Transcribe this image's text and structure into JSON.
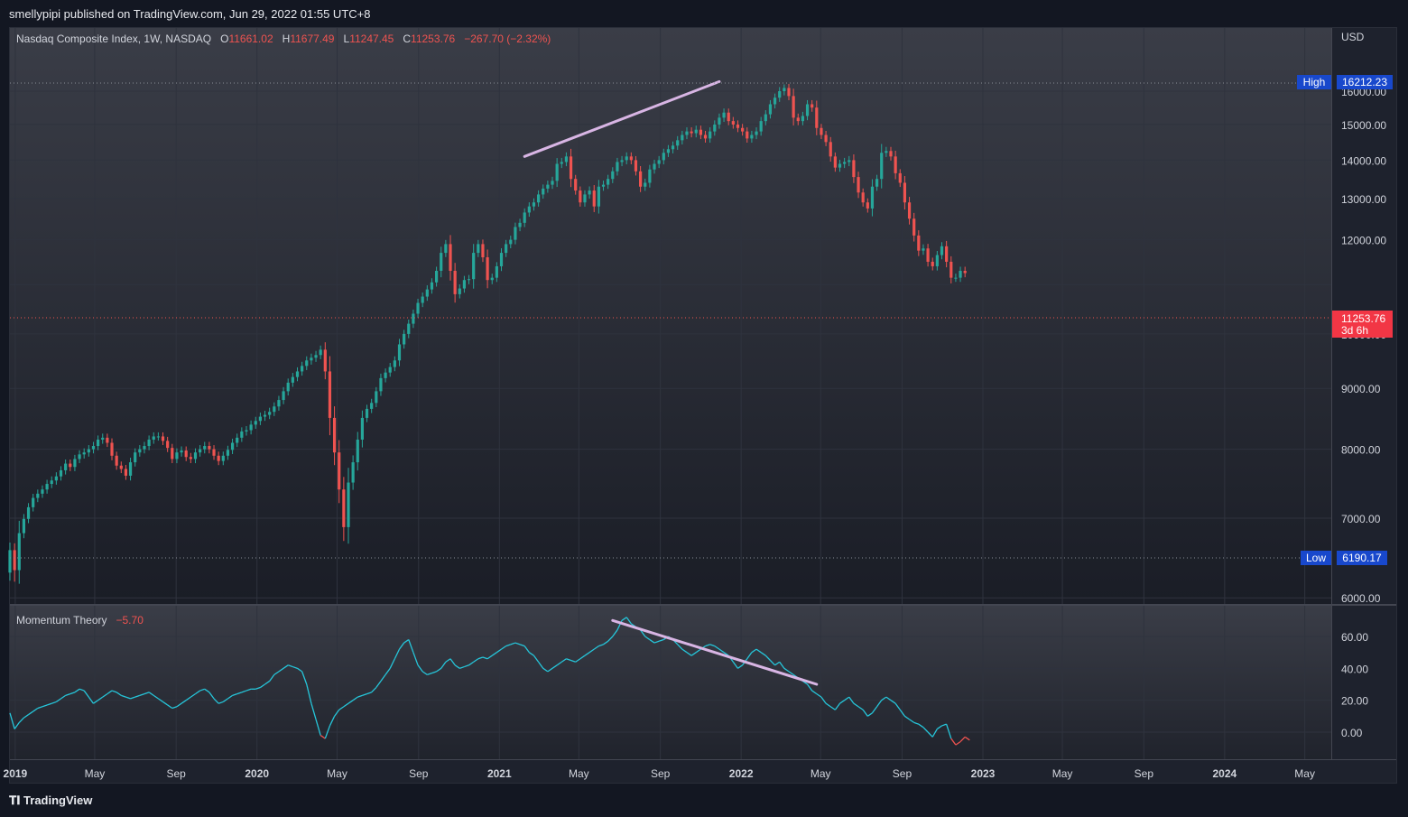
{
  "header": {
    "published": "smellypipi published on TradingView.com, Jun 29, 2022 01:55 UTC+8"
  },
  "footer": {
    "brand": "TradingView"
  },
  "colors": {
    "background": "#131722",
    "pane": "#1e222d",
    "up": "#26a69a",
    "down": "#ef5350",
    "trendline": "#d8b5e4",
    "oscillator": "#26c6da",
    "high_badge": "#1848cc",
    "price_badge": "#f23645"
  },
  "legend": {
    "symbol": "Nasdaq Composite Index, 1W, NASDAQ",
    "open_label": "O",
    "open": "11661.02",
    "high_label": "H",
    "high": "11677.49",
    "low_label": "L",
    "low": "11247.45",
    "close_label": "C",
    "close": "11253.76",
    "change": "−267.70 (−2.32%)"
  },
  "price_axis": {
    "currency": "USD",
    "high_label": "High",
    "high_value": "16212.23",
    "low_label": "Low",
    "low_value": "6190.17",
    "last_value": "11253.76",
    "countdown": "3d 6h"
  },
  "indicator": {
    "name": "Momentum Theory",
    "value": "−5.70"
  },
  "x_axis_labels": [
    "2019",
    "May",
    "Sep",
    "2020",
    "May",
    "Sep",
    "2021",
    "May",
    "Sep",
    "2022",
    "May",
    "Sep",
    "2023",
    "May",
    "Sep",
    "2024",
    "May"
  ],
  "chart_data": [
    {
      "type": "candlestick",
      "title": "Nasdaq Composite Index, 1W, NASDAQ",
      "ylabel": "USD",
      "ylim": [
        6000,
        17000
      ],
      "yticks": [
        6000,
        7000,
        8000,
        9000,
        10000,
        11000,
        12000,
        13000,
        14000,
        15000,
        16000
      ],
      "ytick_labels": [
        "6000.00",
        "7000.00",
        "8000.00",
        "9000.00",
        "10000.00",
        "",
        "12000.00",
        "13000.00",
        "14000.00",
        "15000.00",
        "16000.00"
      ],
      "x_start": "2018-12-24",
      "x_end": "2024-06-10",
      "weekly_closes": [
        6580,
        6330,
        6800,
        6990,
        7150,
        7280,
        7340,
        7400,
        7480,
        7530,
        7590,
        7680,
        7780,
        7730,
        7850,
        7920,
        7950,
        8000,
        8050,
        8150,
        8180,
        8100,
        7900,
        7750,
        7700,
        7600,
        7800,
        7950,
        8000,
        8050,
        8150,
        8200,
        8200,
        8130,
        8020,
        7850,
        7950,
        7980,
        7880,
        7850,
        7950,
        8000,
        8050,
        8000,
        7900,
        7820,
        7900,
        7990,
        8100,
        8180,
        8280,
        8300,
        8390,
        8450,
        8520,
        8550,
        8600,
        8690,
        8800,
        8950,
        9100,
        9200,
        9300,
        9400,
        9500,
        9550,
        9600,
        9700,
        9300,
        8500,
        7950,
        7400,
        6880,
        7500,
        7800,
        8150,
        8500,
        8650,
        8750,
        8950,
        9180,
        9280,
        9380,
        9500,
        9800,
        10000,
        10200,
        10400,
        10620,
        10750,
        10900,
        11050,
        11300,
        11700,
        11900,
        11300,
        10800,
        10920,
        11100,
        11120,
        11700,
        11900,
        11600,
        11100,
        11150,
        11400,
        11700,
        11900,
        12000,
        12300,
        12400,
        12650,
        12800,
        12900,
        13100,
        13250,
        13350,
        13450,
        13900,
        13950,
        14100,
        13500,
        13200,
        12900,
        13100,
        13200,
        12800,
        13300,
        13350,
        13500,
        13700,
        13950,
        14000,
        14100,
        14000,
        13700,
        13300,
        13400,
        13750,
        13900,
        14000,
        14200,
        14300,
        14400,
        14550,
        14700,
        14800,
        14750,
        14850,
        14700,
        14600,
        14800,
        15000,
        15200,
        15350,
        15100,
        15000,
        14900,
        14800,
        14600,
        14700,
        14800,
        15100,
        15300,
        15600,
        15800,
        16000,
        16100,
        15850,
        15200,
        15100,
        15250,
        15600,
        15500,
        14900,
        14700,
        14500,
        14100,
        13800,
        13900,
        13950,
        14000,
        13550,
        13150,
        12900,
        12750,
        13300,
        13500,
        14200,
        14250,
        14100,
        13650,
        13400,
        12900,
        12500,
        12100,
        11750,
        11800,
        11500,
        11400,
        11650,
        11850,
        11500,
        11150,
        11150,
        11300,
        11250
      ],
      "range_high": "16212.23",
      "range_low": "6190.17",
      "last_close": "11253.76",
      "trendlines": [
        {
          "from": [
            "2021-02-08",
            14100
          ],
          "to": [
            "2021-11-29",
            16300
          ]
        }
      ]
    },
    {
      "type": "line",
      "title": "Momentum Theory",
      "ylim": [
        -18,
        78
      ],
      "yticks": [
        0,
        20,
        40,
        60
      ],
      "ytick_labels": [
        "0.00",
        "20.00",
        "40.00",
        "60.00"
      ],
      "last_value": "−5.70",
      "values": [
        12,
        2,
        6,
        9,
        11,
        13,
        15,
        16,
        17,
        18,
        19,
        21,
        23,
        24,
        25,
        27,
        26,
        22,
        18,
        20,
        22,
        24,
        26,
        25,
        23,
        22,
        21,
        22,
        23,
        24,
        25,
        23,
        21,
        19,
        17,
        15,
        16,
        18,
        20,
        22,
        24,
        26,
        27,
        25,
        21,
        18,
        19,
        21,
        23,
        24,
        25,
        26,
        27,
        27,
        28,
        30,
        32,
        36,
        38,
        40,
        42,
        41,
        40,
        38,
        30,
        18,
        8,
        -2,
        -4,
        4,
        10,
        14,
        16,
        18,
        20,
        22,
        23,
        24,
        25,
        28,
        32,
        36,
        40,
        46,
        52,
        56,
        58,
        50,
        42,
        38,
        36,
        37,
        38,
        40,
        44,
        46,
        42,
        40,
        41,
        42,
        44,
        46,
        47,
        46,
        48,
        50,
        52,
        54,
        55,
        56,
        55,
        54,
        50,
        48,
        44,
        40,
        38,
        40,
        42,
        44,
        46,
        45,
        44,
        46,
        48,
        50,
        52,
        54,
        55,
        57,
        60,
        64,
        70,
        72,
        68,
        66,
        64,
        60,
        58,
        56,
        57,
        58,
        60,
        58,
        55,
        52,
        50,
        48,
        50,
        52,
        54,
        55,
        54,
        52,
        50,
        48,
        44,
        40,
        42,
        46,
        50,
        52,
        50,
        48,
        45,
        42,
        44,
        40,
        38,
        36,
        34,
        32,
        30,
        26,
        24,
        22,
        18,
        16,
        14,
        18,
        20,
        22,
        18,
        16,
        14,
        10,
        12,
        16,
        20,
        22,
        20,
        18,
        14,
        10,
        8,
        6,
        5,
        3,
        0,
        -3,
        2,
        4,
        5,
        -4,
        -8,
        -6,
        -3,
        -5
      ],
      "trendlines": [
        {
          "from": [
            "2021-06-21",
            70
          ],
          "to": [
            "2022-04-25",
            30
          ]
        }
      ]
    }
  ]
}
